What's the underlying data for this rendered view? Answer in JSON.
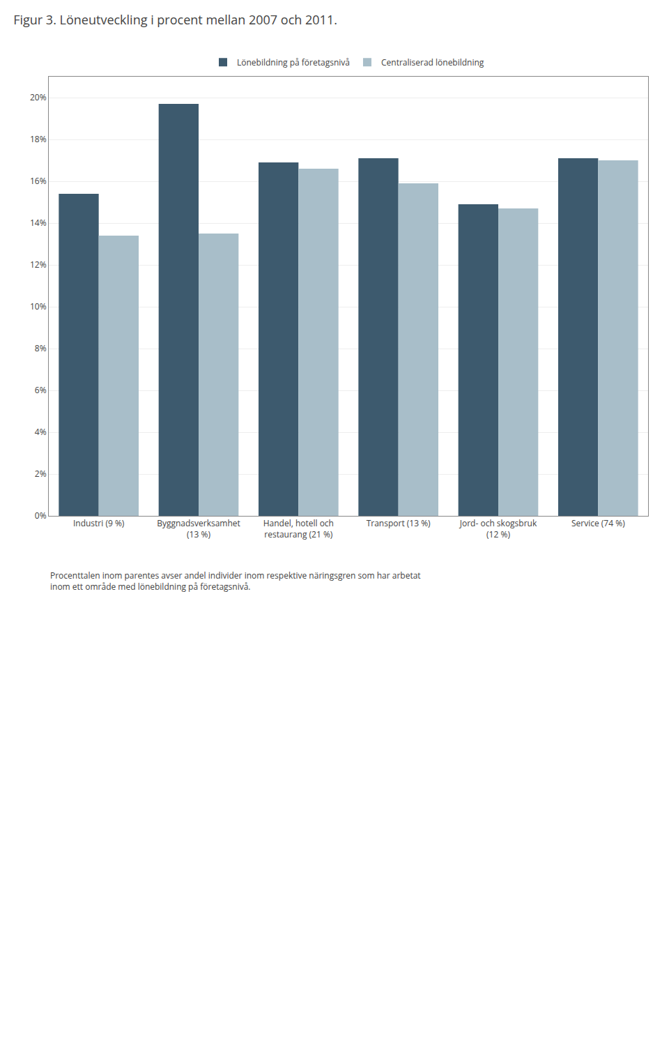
{
  "chart_data": {
    "type": "bar",
    "title": "Figur 3. Löneutveckling i procent mellan 2007 och 2011.",
    "categories": [
      "Industri (9 %)",
      "Byggnadsverksamhet\n(13 %)",
      "Handel, hotell och\nrestaurang (21 %)",
      "Transport (13 %)",
      "Jord- och skogsbruk\n(12 %)",
      "Service (74 %)"
    ],
    "series": [
      {
        "name": "Lönebildning på företagsnivå",
        "color": "#3d5a6e",
        "values": [
          15.4,
          19.7,
          16.9,
          17.1,
          14.9,
          17.1
        ]
      },
      {
        "name": "Centraliserad lönebildning",
        "color": "#a8bec9",
        "values": [
          13.4,
          13.5,
          16.6,
          15.9,
          14.7,
          17.0
        ]
      }
    ],
    "ylim": [
      0,
      21
    ],
    "yticks": [
      {
        "value": 0,
        "label": "0%"
      },
      {
        "value": 2,
        "label": "2%"
      },
      {
        "value": 4,
        "label": "4%"
      },
      {
        "value": 6,
        "label": "6%"
      },
      {
        "value": 8,
        "label": "8%"
      },
      {
        "value": 10,
        "label": "10%"
      },
      {
        "value": 12,
        "label": "12%"
      },
      {
        "value": 14,
        "label": "14%"
      },
      {
        "value": 16,
        "label": "16%"
      },
      {
        "value": 18,
        "label": "18%"
      },
      {
        "value": 20,
        "label": "20%"
      }
    ],
    "grid": true,
    "legend": "top",
    "annotations": [
      "Procenttalen inom parentes avser andel individer inom respektive näringsgren som har arbetat inom ett område med lönebildning på företagsnivå."
    ]
  }
}
